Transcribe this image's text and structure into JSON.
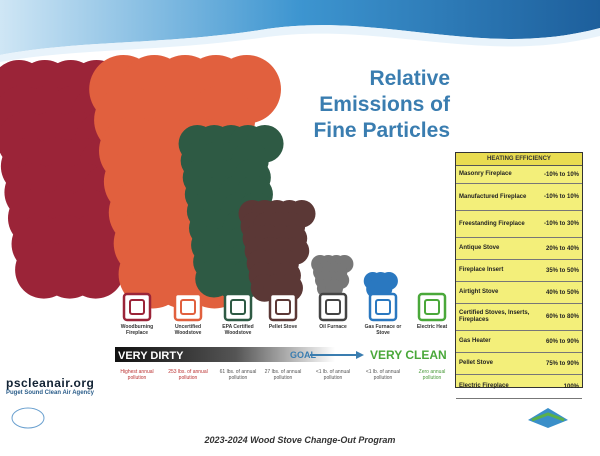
{
  "title": "Relative Emissions of Fine Particles",
  "heating_efficiency": {
    "header": "HEATING EFFICIENCY",
    "rows": [
      [
        "Masonry Fireplace",
        "-10% to 10%"
      ],
      [
        "Manufactured Fireplace",
        "-10% to 10%"
      ],
      [
        "Freestanding Fireplace",
        "-10% to 30%"
      ],
      [
        "Antique Stove",
        "20% to 40%"
      ],
      [
        "Fireplace Insert",
        "35% to 50%"
      ],
      [
        "Airtight Stove",
        "40% to 50%"
      ],
      [
        "Certified Stoves, Inserts, Fireplaces",
        "60% to 80%"
      ],
      [
        "Gas Heater",
        "60% to 90%"
      ],
      [
        "Pellet Stove",
        "75% to 90%"
      ],
      [
        "Electric Fireplace",
        "100%"
      ]
    ]
  },
  "appliances": [
    {
      "label": "Woodburning Fireplace",
      "pollution": "Highest annual pollution"
    },
    {
      "label": "Uncertified Woodstove",
      "pollution": "253 lbs. of annual pollution"
    },
    {
      "label": "EPA Certified Woodstove",
      "pollution": "61 lbs. of annual pollution"
    },
    {
      "label": "Pellet Stove",
      "pollution": "27 lbs. of annual pollution"
    },
    {
      "label": "Oil Furnace",
      "pollution": "<1 lb. of annual pollution"
    },
    {
      "label": "Gas Furnace or Stove",
      "pollution": "<1 lb. of annual pollution"
    },
    {
      "label": "Electric Heat",
      "pollution": "Zero annual pollution"
    }
  ],
  "scale": {
    "left": "VERY DIRTY",
    "middle": "GOAL",
    "right": "VERY CLEAN"
  },
  "logo": {
    "site": "pscleanair.org",
    "agency": "Puget Sound Clean Air Agency"
  },
  "footer": "2023-2024 Wood Stove Change-Out Program"
}
